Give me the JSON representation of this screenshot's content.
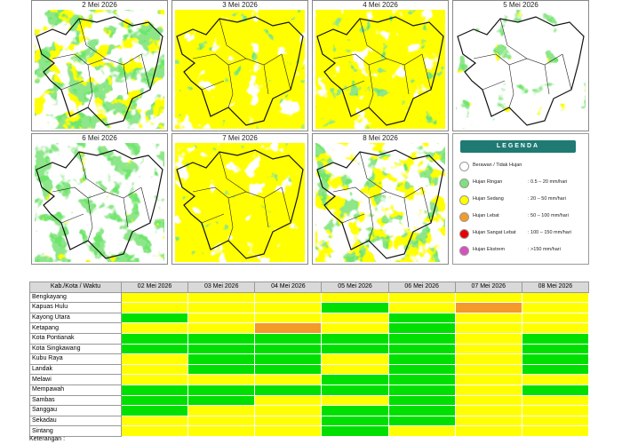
{
  "maps": [
    {
      "date": "2 Mei 2026"
    },
    {
      "date": "3 Mei 2026"
    },
    {
      "date": "4 Mei 2026"
    },
    {
      "date": "5 Mei 2026"
    },
    {
      "date": "6 Mei 2026"
    },
    {
      "date": "7 Mei 2026"
    },
    {
      "date": "8 Mei 2026"
    }
  ],
  "legend": {
    "title": "LEGENDA",
    "items": [
      {
        "label": "Berawan / Tidak Hujan",
        "range": null,
        "color": "#ffffff"
      },
      {
        "label": "Hujan Ringan",
        "range": ": 0.5 – 20 mm/hari",
        "color": "#7fe07f"
      },
      {
        "label": "Hujan Sedang",
        "range": ": 20 – 50 mm/hari",
        "color": "#ffff00"
      },
      {
        "label": "Hujan Lebat",
        "range": ": 50 – 100 mm/hari",
        "color": "#f39a2b"
      },
      {
        "label": "Hujan Sangat Lebat",
        "range": ": 100 – 150 mm/hari",
        "color": "#e60000"
      },
      {
        "label": "Hujan Ekstrem",
        "range": ": >150 mm/hari",
        "color": "#d94fbf"
      }
    ]
  },
  "table": {
    "header": [
      "Kab./Kota / Waktu",
      "02 Mei 2026",
      "03 Mei 2026",
      "04 Mei 2026",
      "05 Mei 2026",
      "06 Mei 2026",
      "07 Mei 2026",
      "08 Mei 2026"
    ],
    "rows": [
      {
        "name": "Bengkayang",
        "cells": [
          "#ffff00",
          "#ffff00",
          "#ffff00",
          "#ffff00",
          "#ffff00",
          "#ffff00",
          "#ffff00"
        ]
      },
      {
        "name": "Kapuas Hulu",
        "cells": [
          "#ffff00",
          "#ffff00",
          "#ffff00",
          "#00e000",
          "#ffff00",
          "#f39a2b",
          "#ffff00"
        ]
      },
      {
        "name": "Kayong Utara",
        "cells": [
          "#00e000",
          "#ffff00",
          "#ffff00",
          "#ffff00",
          "#00e000",
          "#ffff00",
          "#ffff00"
        ]
      },
      {
        "name": "Ketapang",
        "cells": [
          "#ffff00",
          "#ffff00",
          "#f39a2b",
          "#ffff00",
          "#00e000",
          "#ffff00",
          "#ffff00"
        ]
      },
      {
        "name": "Kota Pontianak",
        "cells": [
          "#00e000",
          "#00e000",
          "#00e000",
          "#00e000",
          "#00e000",
          "#ffff00",
          "#00e000"
        ]
      },
      {
        "name": "Kota Singkawang",
        "cells": [
          "#00e000",
          "#00e000",
          "#00e000",
          "#00e000",
          "#00e000",
          "#ffff00",
          "#00e000"
        ]
      },
      {
        "name": "Kubu Raya",
        "cells": [
          "#ffff00",
          "#00e000",
          "#00e000",
          "#ffff00",
          "#00e000",
          "#ffff00",
          "#00e000"
        ]
      },
      {
        "name": "Landak",
        "cells": [
          "#ffff00",
          "#00e000",
          "#00e000",
          "#ffff00",
          "#00e000",
          "#ffff00",
          "#00e000"
        ]
      },
      {
        "name": "Melawi",
        "cells": [
          "#ffff00",
          "#ffff00",
          "#ffff00",
          "#00e000",
          "#00e000",
          "#ffff00",
          "#ffff00"
        ]
      },
      {
        "name": "Mempawah",
        "cells": [
          "#00e000",
          "#00e000",
          "#00e000",
          "#00e000",
          "#00e000",
          "#ffff00",
          "#00e000"
        ]
      },
      {
        "name": "Sambas",
        "cells": [
          "#00e000",
          "#00e000",
          "#ffff00",
          "#ffff00",
          "#00e000",
          "#ffff00",
          "#ffff00"
        ]
      },
      {
        "name": "Sanggau",
        "cells": [
          "#00e000",
          "#ffff00",
          "#ffff00",
          "#00e000",
          "#00e000",
          "#ffff00",
          "#ffff00"
        ]
      },
      {
        "name": "Sekadau",
        "cells": [
          "#ffff00",
          "#ffff00",
          "#ffff00",
          "#00e000",
          "#00e000",
          "#ffff00",
          "#ffff00"
        ]
      },
      {
        "name": "Sintang",
        "cells": [
          "#ffff00",
          "#ffff00",
          "#ffff00",
          "#00e000",
          "#ffff00",
          "#ffff00",
          "#ffff00"
        ]
      }
    ]
  },
  "footer": "Keterangan :"
}
